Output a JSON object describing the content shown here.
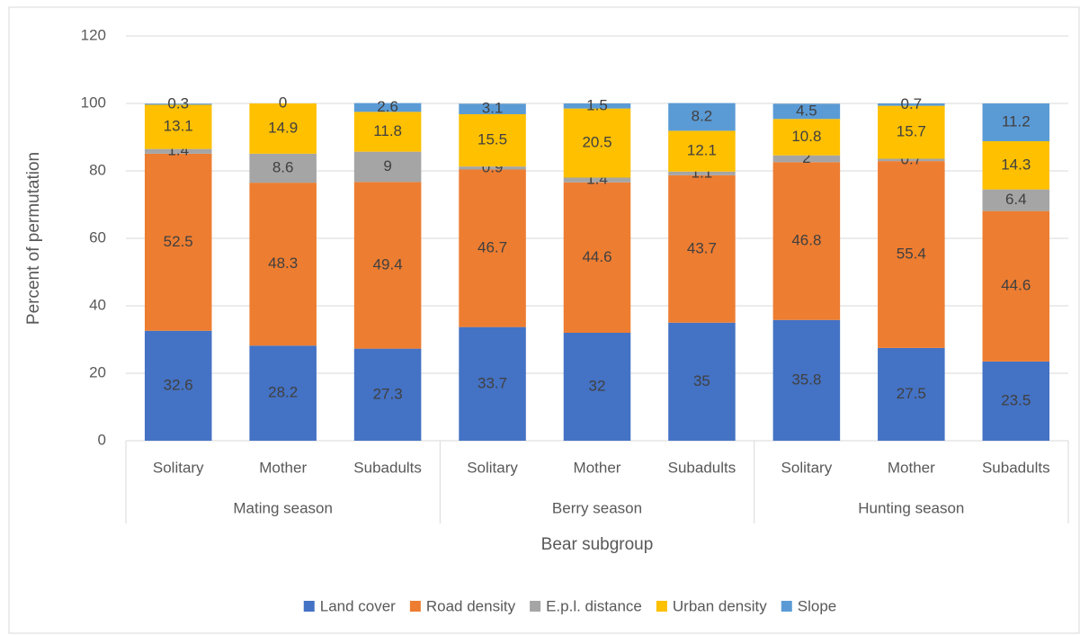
{
  "chart_data": {
    "type": "stacked-bar",
    "y_label": "Percent of permutation",
    "x_label": "Bear subgroup",
    "categories": [
      "Solitary",
      "Mother",
      "Subadults",
      "Solitary",
      "Mother",
      "Subadults",
      "Solitary",
      "Mother",
      "Subadults"
    ],
    "groups": [
      "Mating season",
      "Berry season",
      "Hunting season"
    ],
    "series": [
      {
        "name": "Land cover",
        "color": "#4472c4",
        "values": [
          32.6,
          28.2,
          27.3,
          33.7,
          32,
          35,
          35.8,
          27.5,
          23.5
        ]
      },
      {
        "name": "Road density",
        "color": "#ed7d31",
        "values": [
          52.5,
          48.3,
          49.4,
          46.7,
          44.6,
          43.7,
          46.8,
          55.4,
          44.6
        ]
      },
      {
        "name": "E.p.l. distance",
        "color": "#a5a5a5",
        "values": [
          1.4,
          8.6,
          9,
          0.9,
          1.4,
          1.1,
          2,
          0.7,
          6.4
        ]
      },
      {
        "name": "Urban density",
        "color": "#ffc000",
        "values": [
          13.1,
          14.9,
          11.8,
          15.5,
          20.5,
          12.1,
          10.8,
          15.7,
          14.3
        ]
      },
      {
        "name": "Slope",
        "color": "#5b9bd5",
        "values": [
          0.3,
          0,
          2.6,
          3.1,
          1.5,
          8.2,
          4.5,
          0.7,
          11.2
        ]
      }
    ],
    "ylim": [
      0,
      120
    ],
    "yticks": [
      0,
      20,
      40,
      60,
      80,
      100,
      120
    ],
    "grid": true,
    "legend": "bottom"
  }
}
